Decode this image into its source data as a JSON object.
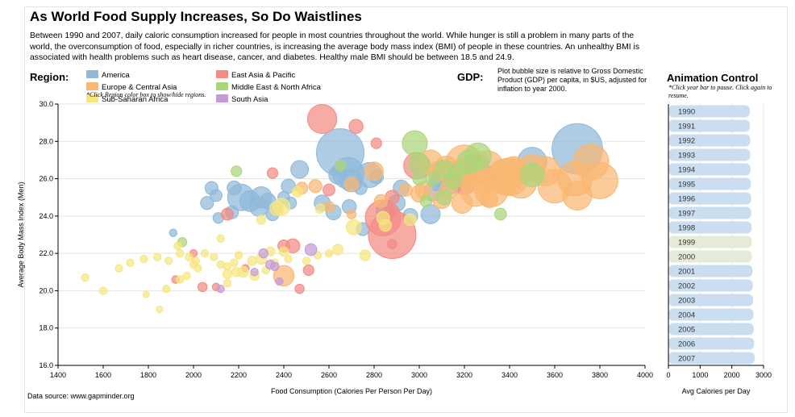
{
  "title": "As World Food Supply Increases, So Do Waistlines",
  "description": "Between 1990 and 2007, daily caloric consumption increased for people in most countries throughout the world. While hunger is still a problem in many parts of the world, the overconsumption of food, especially in richer countries, is increasing the average body mass index (BMI) of people in these countries. An unhealthy BMI is associated with health problems such as heart disease, cancer, and diabetes. Healthy male BMI should be between 18.5 and 24.9.",
  "region_header": "Region:",
  "region_hint": "*Click Region color box to show/hide regions.",
  "regions": [
    {
      "name": "America",
      "color": "#8fb8d9"
    },
    {
      "name": "East Asia & Pacific",
      "color": "#f28b82"
    },
    {
      "name": "Europe & Central Asia",
      "color": "#f9b772"
    },
    {
      "name": "Middle East & North Africa",
      "color": "#aad57a"
    },
    {
      "name": "Sub-Saharan Africa",
      "color": "#f7e680"
    },
    {
      "name": "South Asia",
      "color": "#c59bd6"
    }
  ],
  "gdp_header": "GDP:",
  "gdp_note": "Plot bubble size is relative to Gross Domestic Product (GDP) per capita, in $US, adjusted for inflation to year 2000.",
  "animation": {
    "header": "Animation Control",
    "hint": "*Click year bar to pause. Click again to resume.",
    "xlabel": "Avg Calories per Day",
    "xticks": [
      "0",
      "1000",
      "2000",
      "3000"
    ],
    "xlim": [
      0,
      3000
    ],
    "bar_color": "#cadef0",
    "highlight_color": "#e4ecd8",
    "highlighted": [
      "1999",
      "2000"
    ],
    "years": [
      "1990",
      "1991",
      "1992",
      "1993",
      "1994",
      "1995",
      "1996",
      "1997",
      "1998",
      "1999",
      "2000",
      "2001",
      "2002",
      "2003",
      "2004",
      "2005",
      "2006",
      "2007"
    ],
    "values": [
      2570,
      2570,
      2580,
      2580,
      2590,
      2600,
      2610,
      2610,
      2620,
      2630,
      2630,
      2650,
      2660,
      2670,
      2680,
      2690,
      2700,
      2720
    ]
  },
  "source": "Data source: www.gapminder.org",
  "chart_data": {
    "type": "scatter",
    "xlabel": "Food Consumption (Calories Per Person Per Day)",
    "ylabel": "Average Body Mass Index (Men)",
    "xlim": [
      1400,
      4000
    ],
    "ylim": [
      16,
      30
    ],
    "xticks": [
      "1400",
      "1600",
      "1800",
      "2000",
      "2200",
      "2400",
      "2600",
      "2800",
      "3000",
      "3200",
      "3400",
      "3600",
      "3800",
      "4000"
    ],
    "yticks": [
      "16.0",
      "18.0",
      "20.0",
      "22.0",
      "24.0",
      "26.0",
      "28.0",
      "30.0"
    ],
    "grid": true,
    "series": [
      {
        "name": "America",
        "color": "#8fb8d9",
        "points": [
          [
            2650,
            27.4,
            8000
          ],
          [
            2685,
            26.3,
            3500
          ],
          [
            2640,
            26.2,
            1200
          ],
          [
            2700,
            25.9,
            1800
          ],
          [
            2780,
            26.2,
            2200
          ],
          [
            2210,
            25.0,
            2500
          ],
          [
            2300,
            25.0,
            1600
          ],
          [
            2250,
            24.8,
            1500
          ],
          [
            2330,
            24.8,
            900
          ],
          [
            2180,
            25.5,
            700
          ],
          [
            2080,
            25.5,
            600
          ],
          [
            2100,
            25.1,
            500
          ],
          [
            2060,
            24.7,
            600
          ],
          [
            2290,
            24.5,
            1300
          ],
          [
            2420,
            25.6,
            700
          ],
          [
            2470,
            26.5,
            1100
          ],
          [
            2430,
            24.7,
            500
          ],
          [
            2170,
            24.2,
            600
          ],
          [
            2110,
            23.9,
            400
          ],
          [
            2350,
            24.1,
            600
          ],
          [
            2620,
            24.2,
            800
          ],
          [
            2850,
            24.3,
            1200
          ],
          [
            2960,
            24.0,
            800
          ],
          [
            3050,
            24.1,
            1300
          ],
          [
            2750,
            23.3,
            600
          ],
          [
            2740,
            25.5,
            600
          ],
          [
            3080,
            25.8,
            1000
          ],
          [
            3150,
            25.7,
            1200
          ],
          [
            3260,
            26.8,
            1500
          ],
          [
            3700,
            27.6,
            9000
          ],
          [
            3500,
            26.9,
            3000
          ],
          [
            3220,
            26.4,
            1500
          ],
          [
            3300,
            26.2,
            1300
          ],
          [
            2920,
            25.5,
            900
          ],
          [
            2810,
            26.1,
            700
          ],
          [
            3100,
            26.1,
            1400
          ],
          [
            1910,
            23.1,
            200
          ],
          [
            2400,
            25.0,
            500
          ],
          [
            2370,
            24.4,
            400
          ],
          [
            3060,
            25.3,
            1200
          ],
          [
            2570,
            24.7,
            900
          ],
          [
            2690,
            24.5,
            700
          ],
          [
            2900,
            24.7,
            1000
          ]
        ]
      },
      {
        "name": "East Asia & Pacific",
        "color": "#f28b82",
        "points": [
          [
            2570,
            29.2,
            3000
          ],
          [
            2880,
            23.0,
            8000
          ],
          [
            2840,
            23.9,
            4500
          ],
          [
            2350,
            26.3,
            400
          ],
          [
            2720,
            28.8,
            700
          ],
          [
            2810,
            27.9,
            400
          ],
          [
            2880,
            22.5,
            300
          ],
          [
            2400,
            22.4,
            500
          ],
          [
            2440,
            22.4,
            700
          ],
          [
            2510,
            21.1,
            400
          ],
          [
            2470,
            20.1,
            300
          ],
          [
            2040,
            20.2,
            300
          ],
          [
            1920,
            20.6,
            200
          ],
          [
            2100,
            20.2,
            200
          ],
          [
            2000,
            22.0,
            200
          ],
          [
            2150,
            24.1,
            500
          ],
          [
            2230,
            21.2,
            200
          ],
          [
            2870,
            24.2,
            600
          ],
          [
            2880,
            25.0,
            700
          ],
          [
            3090,
            26.5,
            900
          ],
          [
            2990,
            26.7,
            2500
          ],
          [
            3200,
            25.8,
            2000
          ],
          [
            2600,
            25.4,
            500
          ]
        ]
      },
      {
        "name": "Europe & Central Asia",
        "color": "#f9b772",
        "points": [
          [
            3380,
            26.1,
            4500
          ],
          [
            3320,
            25.4,
            4000
          ],
          [
            3450,
            25.8,
            3500
          ],
          [
            3600,
            25.6,
            4000
          ],
          [
            3690,
            26.0,
            4200
          ],
          [
            3760,
            26.9,
            4500
          ],
          [
            3800,
            25.9,
            4600
          ],
          [
            3200,
            26.8,
            5000
          ],
          [
            3250,
            25.3,
            3000
          ],
          [
            3150,
            26.2,
            2500
          ],
          [
            3050,
            26.9,
            2000
          ],
          [
            3120,
            26.6,
            1800
          ],
          [
            3420,
            26.4,
            3000
          ],
          [
            3500,
            26.6,
            2500
          ],
          [
            3290,
            25.9,
            2000
          ],
          [
            3380,
            25.7,
            1500
          ],
          [
            3020,
            25.4,
            1000
          ],
          [
            2940,
            25.4,
            600
          ],
          [
            2800,
            26.4,
            1200
          ],
          [
            2700,
            25.7,
            700
          ],
          [
            2830,
            24.8,
            600
          ],
          [
            2540,
            25.6,
            600
          ],
          [
            2480,
            25.5,
            500
          ],
          [
            2600,
            24.5,
            400
          ],
          [
            2700,
            24.1,
            300
          ],
          [
            3190,
            24.7,
            1500
          ],
          [
            3100,
            24.9,
            1200
          ],
          [
            3310,
            24.9,
            1000
          ],
          [
            3210,
            26.3,
            3500
          ],
          [
            3700,
            25.1,
            3000
          ],
          [
            3560,
            26.4,
            3000
          ],
          [
            3300,
            26.6,
            4000
          ],
          [
            3400,
            26.1,
            5000
          ],
          [
            2400,
            20.8,
            1500
          ],
          [
            3000,
            25.2,
            1000
          ],
          [
            3080,
            26.4,
            1300
          ],
          [
            3130,
            25.4,
            1100
          ]
        ]
      },
      {
        "name": "Middle East & North Africa",
        "color": "#aad57a",
        "points": [
          [
            2980,
            27.9,
            2200
          ],
          [
            3000,
            26.8,
            1500
          ],
          [
            3260,
            27.2,
            2500
          ],
          [
            3220,
            26.9,
            2000
          ],
          [
            3500,
            26.2,
            2000
          ],
          [
            3110,
            26.5,
            1200
          ],
          [
            3150,
            25.9,
            1000
          ],
          [
            2650,
            26.7,
            400
          ],
          [
            2190,
            26.4,
            400
          ],
          [
            3360,
            24.1,
            500
          ],
          [
            1950,
            22.6,
            300
          ],
          [
            3060,
            26.0,
            700
          ],
          [
            3110,
            25.0,
            800
          ],
          [
            3030,
            24.8,
            500
          ],
          [
            3000,
            26.0,
            600
          ],
          [
            3170,
            26.4,
            900
          ]
        ]
      },
      {
        "name": "Sub-Saharan Africa",
        "color": "#f7e680",
        "points": [
          [
            2390,
            24.5,
            1000
          ],
          [
            2370,
            24.4,
            700
          ],
          [
            2710,
            23.4,
            800
          ],
          [
            2840,
            23.9,
            600
          ],
          [
            2850,
            23.5,
            500
          ],
          [
            2640,
            22.2,
            400
          ],
          [
            2340,
            22.1,
            300
          ],
          [
            2400,
            22.1,
            300
          ],
          [
            2300,
            21.7,
            400
          ],
          [
            2260,
            21.6,
            300
          ],
          [
            2200,
            21.9,
            200
          ],
          [
            2180,
            21.5,
            200
          ],
          [
            2150,
            21.3,
            200
          ],
          [
            2120,
            21.4,
            200
          ],
          [
            2090,
            21.8,
            200
          ],
          [
            2010,
            21.6,
            200
          ],
          [
            1980,
            21.8,
            200
          ],
          [
            1940,
            22.0,
            200
          ],
          [
            1890,
            21.6,
            200
          ],
          [
            1840,
            21.8,
            200
          ],
          [
            1780,
            21.7,
            200
          ],
          [
            1720,
            21.5,
            200
          ],
          [
            1670,
            21.2,
            200
          ],
          [
            1600,
            20.0,
            200
          ],
          [
            1520,
            20.7,
            200
          ],
          [
            1850,
            19.0,
            150
          ],
          [
            1790,
            19.8,
            150
          ],
          [
            1880,
            20.1,
            200
          ],
          [
            1940,
            20.6,
            200
          ],
          [
            1970,
            20.8,
            200
          ],
          [
            2150,
            20.4,
            200
          ],
          [
            2190,
            21.0,
            300
          ],
          [
            2220,
            21.0,
            400
          ],
          [
            2270,
            20.8,
            300
          ],
          [
            2320,
            21.1,
            200
          ],
          [
            2360,
            21.5,
            200
          ],
          [
            2420,
            21.7,
            200
          ],
          [
            2500,
            21.6,
            200
          ],
          [
            2550,
            21.9,
            200
          ],
          [
            2600,
            22.0,
            200
          ],
          [
            2150,
            20.9,
            300
          ],
          [
            2050,
            22.0,
            200
          ],
          [
            2000,
            21.4,
            200
          ],
          [
            2960,
            23.8,
            500
          ],
          [
            2760,
            21.9,
            400
          ],
          [
            2120,
            22.8,
            200
          ],
          [
            2020,
            21.2,
            200
          ],
          [
            1930,
            22.4,
            200
          ],
          [
            2460,
            25.3,
            400
          ],
          [
            2560,
            24.4,
            300
          ],
          [
            2300,
            23.8,
            300
          ]
        ]
      },
      {
        "name": "South Asia",
        "color": "#c59bd6",
        "points": [
          [
            2520,
            22.2,
            500
          ],
          [
            2340,
            21.4,
            300
          ],
          [
            2120,
            20.1,
            200
          ],
          [
            2310,
            22.0,
            300
          ],
          [
            2360,
            21.3,
            250
          ],
          [
            2270,
            21.0,
            200
          ],
          [
            2380,
            20.5,
            200
          ]
        ]
      }
    ]
  }
}
